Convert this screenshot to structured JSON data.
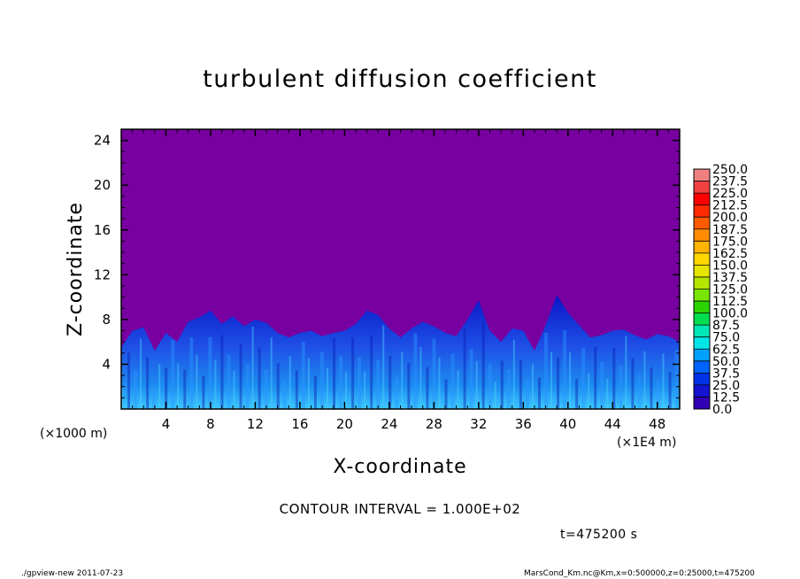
{
  "chart_data": {
    "type": "heatmap",
    "title": "turbulent diffusion coefficient",
    "xlabel": "X-coordinate",
    "ylabel": "Z-coordinate",
    "x_unit_left": "(×1000 m)",
    "x_unit_right": "(×1E4 m)",
    "xlim": [
      0,
      50
    ],
    "ylim": [
      0,
      25
    ],
    "xticks": [
      "4",
      "8",
      "12",
      "16",
      "20",
      "24",
      "28",
      "32",
      "36",
      "40",
      "44",
      "48"
    ],
    "yticks": [
      "4",
      "8",
      "12",
      "16",
      "20",
      "24"
    ],
    "colorbar_levels": [
      "250.0",
      "237.5",
      "225.0",
      "212.5",
      "200.0",
      "187.5",
      "175.0",
      "162.5",
      "150.0",
      "137.5",
      "125.0",
      "112.5",
      "100.0",
      "87.5",
      "75.0",
      "62.5",
      "50.0",
      "37.5",
      "25.0",
      "12.5",
      "0.0"
    ],
    "colorbar_colors": [
      "#f08080",
      "#f04040",
      "#ff0000",
      "#ff2a00",
      "#ff5a00",
      "#ff8c00",
      "#ffb400",
      "#ffd700",
      "#e6e600",
      "#b4e600",
      "#78e600",
      "#2ad400",
      "#00dc50",
      "#00e6b4",
      "#00e6e6",
      "#00a0ff",
      "#0064ff",
      "#0032e6",
      "#1414d2",
      "#3200b4",
      "#7800a0"
    ],
    "background_color": "#7800a0",
    "boundary_layer_tops": [
      [
        0,
        5.5
      ],
      [
        1,
        7.0
      ],
      [
        2,
        7.3
      ],
      [
        3,
        5.2
      ],
      [
        4,
        6.8
      ],
      [
        5,
        6.0
      ],
      [
        6,
        7.8
      ],
      [
        7,
        8.2
      ],
      [
        8,
        8.8
      ],
      [
        9,
        7.6
      ],
      [
        10,
        8.3
      ],
      [
        11,
        7.4
      ],
      [
        12,
        8.0
      ],
      [
        13,
        7.7
      ],
      [
        14,
        6.8
      ],
      [
        15,
        6.4
      ],
      [
        16,
        6.8
      ],
      [
        17,
        7.0
      ],
      [
        18,
        6.5
      ],
      [
        19,
        6.8
      ],
      [
        20,
        7.0
      ],
      [
        21,
        7.6
      ],
      [
        22,
        8.8
      ],
      [
        23,
        8.4
      ],
      [
        24,
        7.2
      ],
      [
        25,
        6.4
      ],
      [
        26,
        7.2
      ],
      [
        27,
        7.8
      ],
      [
        28,
        7.4
      ],
      [
        29,
        6.8
      ],
      [
        30,
        6.5
      ],
      [
        31,
        8.0
      ],
      [
        32,
        9.7
      ],
      [
        33,
        7.0
      ],
      [
        34,
        6.0
      ],
      [
        35,
        7.2
      ],
      [
        36,
        7.0
      ],
      [
        37,
        5.2
      ],
      [
        38,
        7.5
      ],
      [
        39,
        10.2
      ],
      [
        40,
        8.6
      ],
      [
        41,
        7.5
      ],
      [
        42,
        6.4
      ],
      [
        43,
        6.6
      ],
      [
        44,
        7.0
      ],
      [
        45,
        7.1
      ],
      [
        46,
        6.6
      ],
      [
        47,
        6.2
      ],
      [
        48,
        6.7
      ],
      [
        49,
        6.5
      ],
      [
        50,
        6.0
      ]
    ]
  },
  "contour_interval": "CONTOUR INTERVAL = 1.000E+02",
  "timestamp": "t=475200 s",
  "footer": {
    "left": "./gpview-new   2011-07-23",
    "right": "MarsCond_Km.nc@Km,x=0:500000,z=0:25000,t=475200"
  }
}
